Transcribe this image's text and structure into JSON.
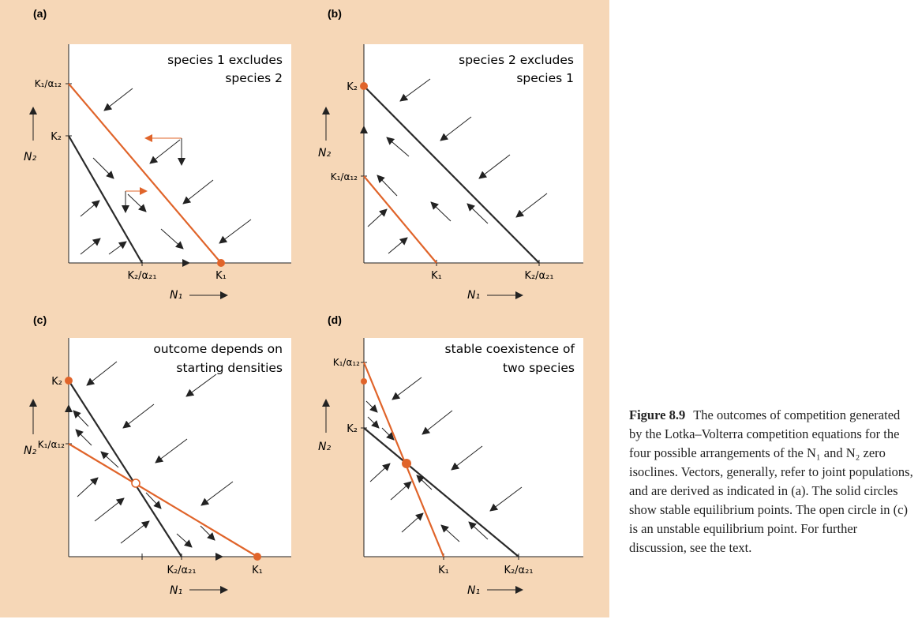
{
  "panels": [
    {
      "letter": "(a)",
      "title_line1": "species 1 excludes",
      "title_line2": "species 2",
      "x_axis_label": "N₁",
      "y_axis_label": "N₂",
      "x_ticks": [
        "K₂/α₂₁",
        "K₁"
      ],
      "y_ticks": [
        "K₁/α₁₂",
        "K₂"
      ]
    },
    {
      "letter": "(b)",
      "title_line1": "species 2 excludes",
      "title_line2": "species 1",
      "x_axis_label": "N₁",
      "y_axis_label": "N₂",
      "x_ticks": [
        "K₁",
        "K₂/α₂₁"
      ],
      "y_ticks": [
        "K₂",
        "K₁/α₁₂"
      ]
    },
    {
      "letter": "(c)",
      "title_line1": "outcome depends on",
      "title_line2": "starting densities",
      "x_axis_label": "N₁",
      "y_axis_label": "N₂",
      "x_ticks": [
        "K₂/α₂₁",
        "K₁"
      ],
      "y_ticks": [
        "K₂",
        "K₁/α₁₂"
      ]
    },
    {
      "letter": "(d)",
      "title_line1": "stable coexistence of",
      "title_line2": "two species",
      "x_axis_label": "N₁",
      "y_axis_label": "N₂",
      "x_ticks": [
        "K₁",
        "K₂/α₂₁"
      ],
      "y_ticks": [
        "K₁/α₁₂",
        "K₂"
      ]
    }
  ],
  "caption": {
    "label": "Figure 8.9",
    "text": "The outcomes of competition generated by the Lotka–Volterra competition equations for the four possible arrangements of the N₁ and N₂ zero isoclines. Vectors, generally, refer to joint populations, and are derived as indicated in (a). The solid circles show stable equilibrium points. The open circle in (c) is an unstable equilibrium point. For further discussion, see the text."
  },
  "colors": {
    "panel_bg": "#f6d7b7",
    "plot_bg": "#ffffff",
    "species1_isocline": "#e0642a",
    "species2_isocline": "#2a2a2a",
    "arrow": "#222222"
  }
}
